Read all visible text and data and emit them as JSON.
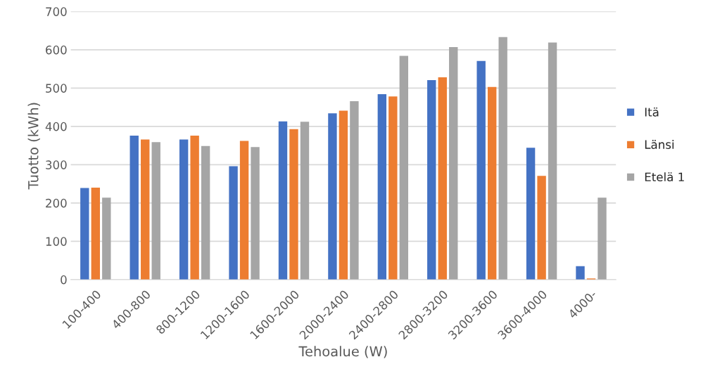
{
  "chart_data": {
    "type": "bar",
    "xlabel": "Tehoalue (W)",
    "ylabel": "Tuotto (kWh)",
    "categories": [
      "100-400",
      "400-800",
      "800-1200",
      "1200-1600",
      "1600-2000",
      "2000-2400",
      "2400-2800",
      "2800-3200",
      "3200-3600",
      "3600-4000",
      "4000-"
    ],
    "series": [
      {
        "name": "Itä",
        "color": "#4472c4",
        "values": [
          239,
          376,
          366,
          296,
          413,
          434,
          484,
          521,
          571,
          344,
          35
        ]
      },
      {
        "name": "Länsi",
        "color": "#ed7d31",
        "values": [
          240,
          366,
          376,
          362,
          393,
          441,
          478,
          528,
          503,
          271,
          3
        ]
      },
      {
        "name": "Etelä 1",
        "color": "#a5a5a5",
        "values": [
          214,
          359,
          349,
          346,
          412,
          466,
          584,
          607,
          633,
          619,
          214
        ]
      }
    ],
    "ylim": [
      0,
      700
    ],
    "yticks": [
      0,
      100,
      200,
      300,
      400,
      500,
      600,
      700
    ],
    "grid": "y",
    "legend": "right"
  }
}
